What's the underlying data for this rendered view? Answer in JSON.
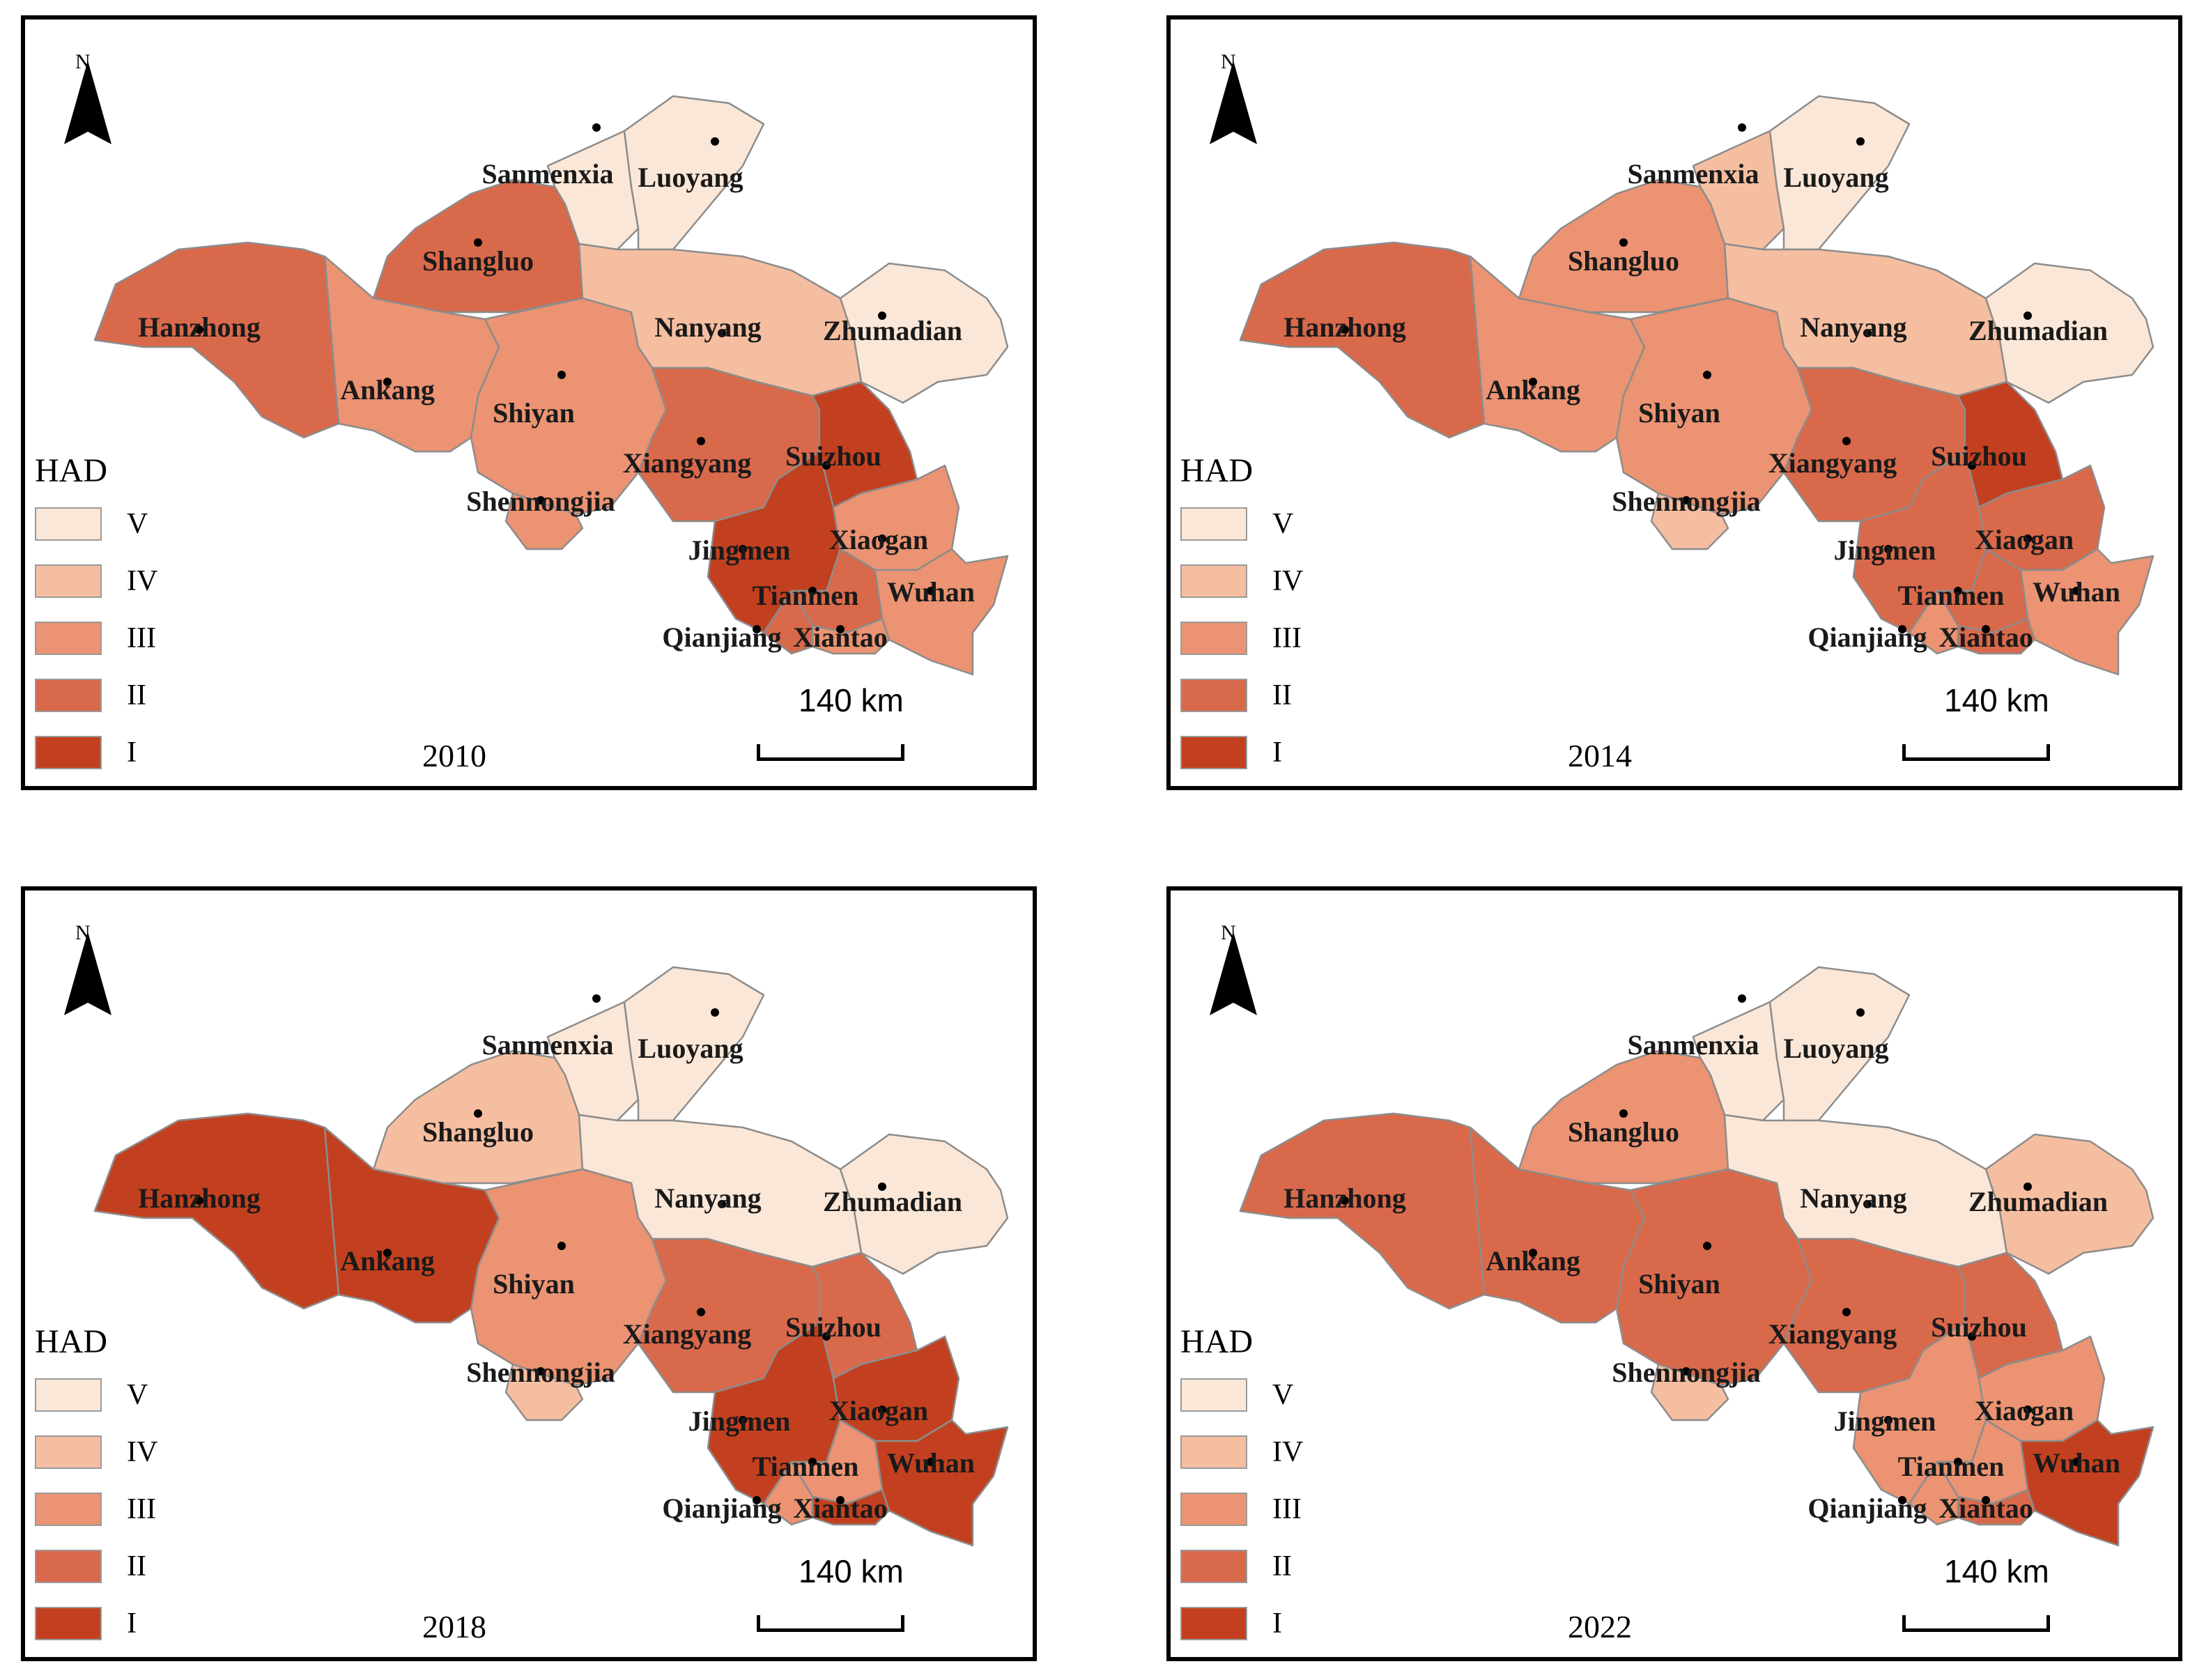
{
  "figure": {
    "legend_title": "HAD",
    "north_label": "N",
    "scale_label": "140 km",
    "classes": [
      {
        "label": "V",
        "color": "#fbe7d7"
      },
      {
        "label": "IV",
        "color": "#f5bea0"
      },
      {
        "label": "III",
        "color": "#eb9372"
      },
      {
        "label": "II",
        "color": "#d9694b"
      },
      {
        "label": "I",
        "color": "#c2401f"
      }
    ]
  },
  "cities": [
    "Sanmenxia",
    "Luoyang",
    "Shangluo",
    "Hanzhong",
    "Nanyang",
    "Zhumadian",
    "Ankang",
    "Shiyan",
    "Xiangyang",
    "Suizhou",
    "Shennongjia",
    "Jingmen",
    "Xiaogan",
    "Tianmen",
    "Wuhan",
    "Qianjiang",
    "Xiantao"
  ],
  "panels": [
    {
      "year": "2010",
      "classes": {
        "Sanmenxia": "V",
        "Luoyang": "V",
        "Shangluo": "II",
        "Hanzhong": "II",
        "Nanyang": "IV",
        "Zhumadian": "V",
        "Ankang": "III",
        "Shiyan": "III",
        "Xiangyang": "II",
        "Suizhou": "I",
        "Shennongjia": "III",
        "Jingmen": "I",
        "Xiaogan": "III",
        "Tianmen": "II",
        "Wuhan": "III",
        "Qianjiang": "II",
        "Xiantao": "III"
      }
    },
    {
      "year": "2014",
      "classes": {
        "Sanmenxia": "IV",
        "Luoyang": "V",
        "Shangluo": "III",
        "Hanzhong": "II",
        "Nanyang": "IV",
        "Zhumadian": "V",
        "Ankang": "III",
        "Shiyan": "III",
        "Xiangyang": "II",
        "Suizhou": "I",
        "Shennongjia": "IV",
        "Jingmen": "II",
        "Xiaogan": "II",
        "Tianmen": "II",
        "Wuhan": "III",
        "Qianjiang": "III",
        "Xiantao": "II"
      }
    },
    {
      "year": "2018",
      "classes": {
        "Sanmenxia": "V",
        "Luoyang": "V",
        "Shangluo": "IV",
        "Hanzhong": "I",
        "Nanyang": "V",
        "Zhumadian": "V",
        "Ankang": "I",
        "Shiyan": "III",
        "Xiangyang": "II",
        "Suizhou": "II",
        "Shennongjia": "IV",
        "Jingmen": "I",
        "Xiaogan": "I",
        "Tianmen": "III",
        "Wuhan": "I",
        "Qianjiang": "III",
        "Xiantao": "I"
      }
    },
    {
      "year": "2022",
      "classes": {
        "Sanmenxia": "V",
        "Luoyang": "V",
        "Shangluo": "III",
        "Hanzhong": "II",
        "Nanyang": "V",
        "Zhumadian": "IV",
        "Ankang": "II",
        "Shiyan": "II",
        "Xiangyang": "II",
        "Suizhou": "II",
        "Shennongjia": "IV",
        "Jingmen": "III",
        "Xiaogan": "III",
        "Tianmen": "III",
        "Wuhan": "I",
        "Qianjiang": "III",
        "Xiantao": "II"
      }
    }
  ]
}
